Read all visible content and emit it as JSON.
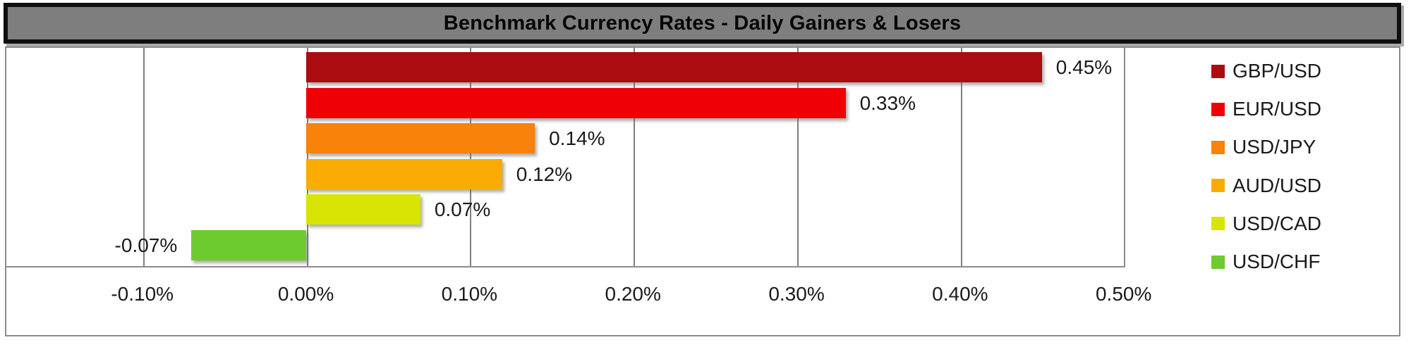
{
  "chart_data": {
    "type": "bar",
    "orientation": "horizontal",
    "title": "Benchmark Currency Rates - Daily Gainers & Losers",
    "categories": [
      "GBP/USD",
      "EUR/USD",
      "USD/JPY",
      "AUD/USD",
      "USD/CAD",
      "USD/CHF"
    ],
    "values": [
      0.45,
      0.33,
      0.14,
      0.12,
      0.07,
      -0.07
    ],
    "value_labels": [
      "0.45%",
      "0.33%",
      "0.14%",
      "0.12%",
      "0.07%",
      "-0.07%"
    ],
    "bar_colors": [
      "#AB0C0F",
      "#EF0005",
      "#F8820A",
      "#FAAB02",
      "#D8E404",
      "#6DCB2F"
    ],
    "xlabel": "",
    "ylabel": "",
    "x_axis": {
      "min": -0.184,
      "max": 0.501,
      "ticks": [
        -0.1,
        0.0,
        0.1,
        0.2,
        0.3,
        0.4,
        0.5
      ],
      "tick_labels": [
        "-0.10%",
        "0.00%",
        "0.10%",
        "0.20%",
        "0.30%",
        "0.40%",
        "0.50%"
      ],
      "gridlines": true
    },
    "legend": {
      "position": "right",
      "entries": [
        {
          "label": "GBP/USD",
          "color": "#AB0C0F"
        },
        {
          "label": "EUR/USD",
          "color": "#EF0005"
        },
        {
          "label": "USD/JPY",
          "color": "#F8820A"
        },
        {
          "label": "AUD/USD",
          "color": "#FAAB02"
        },
        {
          "label": "USD/CAD",
          "color": "#D8E404"
        },
        {
          "label": "USD/CHF",
          "color": "#6DCB2F"
        }
      ]
    },
    "style": {
      "title_bar_bg": "#7E7E7E",
      "title_bar_border": "#0F0F0F",
      "title_text_color": "#050505",
      "gridline_color": "#7F7F7F",
      "frame_border_color": "#8C8C8C",
      "text_color": "#1A1A1A",
      "plot_bg": "#FFFFFF"
    }
  }
}
